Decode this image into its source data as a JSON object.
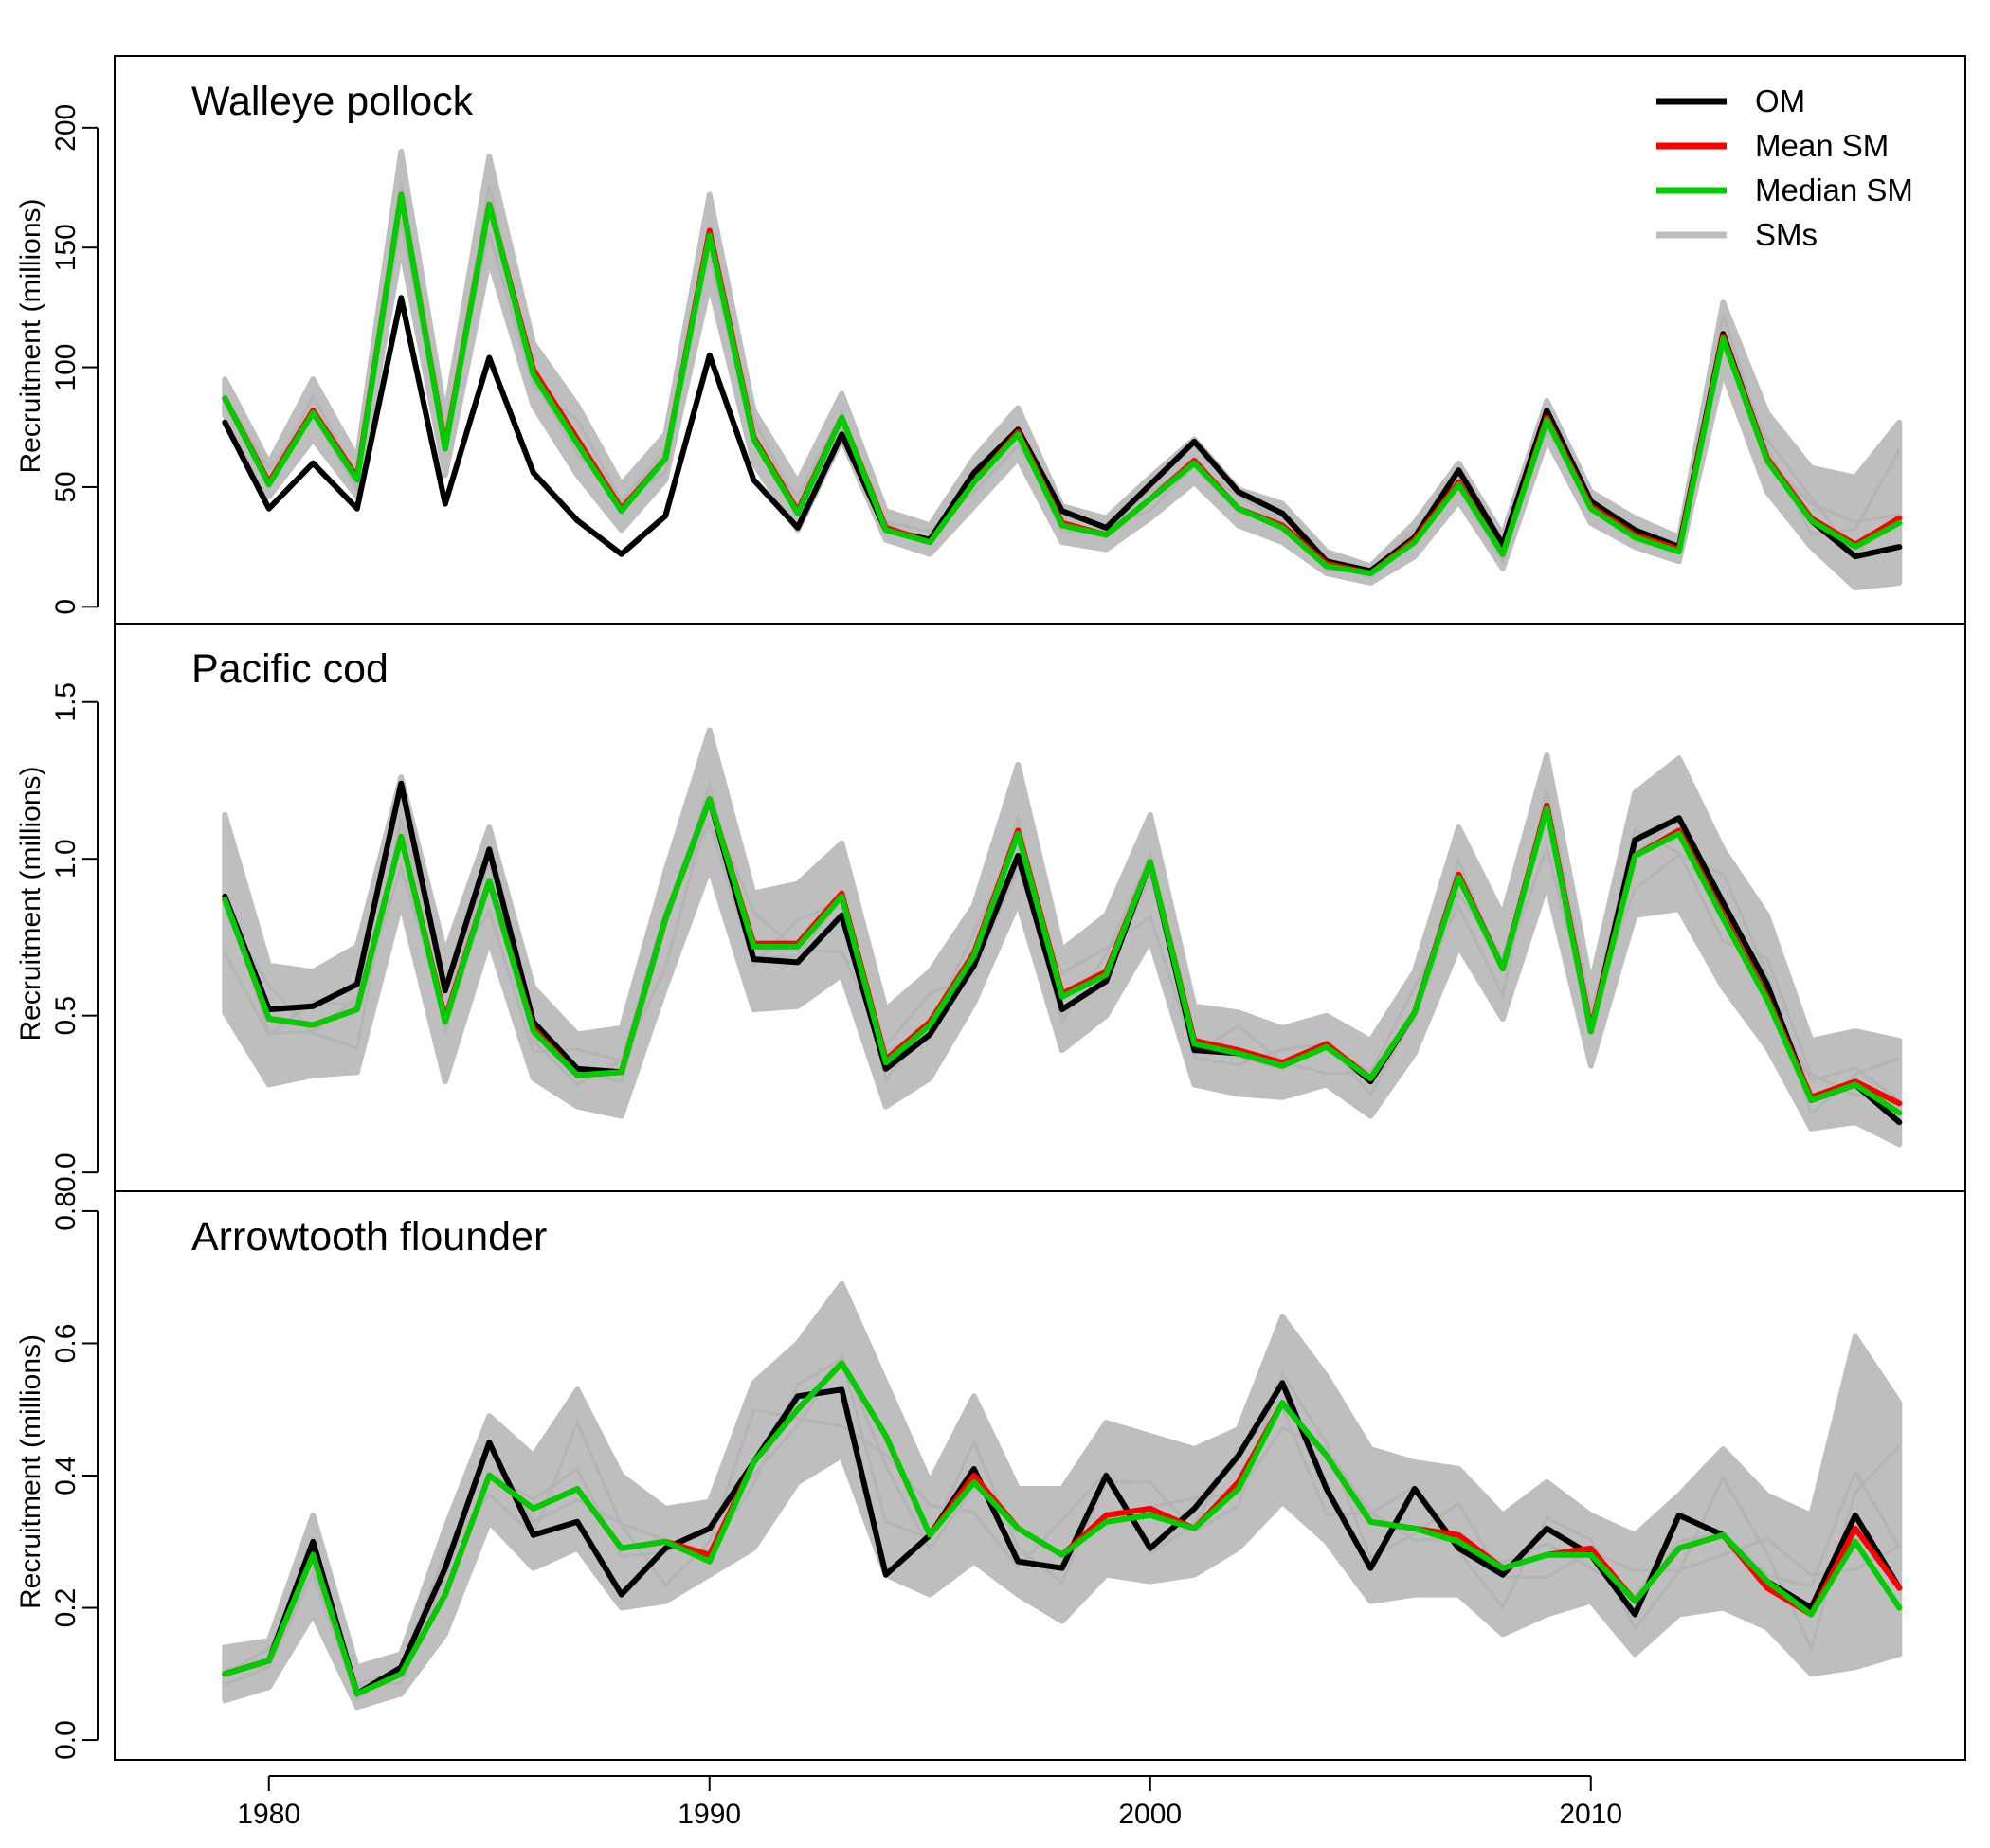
{
  "chart_data": [
    {
      "type": "line",
      "title": "Walleye pollock",
      "ylabel": "Recruitment (millions)",
      "xlim": [
        1976.5,
        2018.5
      ],
      "ylim": [
        -7,
        230
      ],
      "yticks": [
        0,
        50,
        100,
        150,
        200
      ],
      "x": [
        1979,
        1980,
        1981,
        1982,
        1983,
        1984,
        1985,
        1986,
        1987,
        1988,
        1989,
        1990,
        1991,
        1992,
        1993,
        1994,
        1995,
        1996,
        1997,
        1998,
        1999,
        2000,
        2001,
        2002,
        2003,
        2004,
        2005,
        2006,
        2007,
        2008,
        2009,
        2010,
        2011,
        2012,
        2013,
        2014,
        2015,
        2016,
        2017
      ],
      "series": [
        {
          "name": "OM",
          "color": "#000000",
          "values": [
            77,
            41,
            60,
            41,
            129,
            43,
            104,
            56,
            36,
            22,
            38,
            105,
            53,
            33,
            72,
            32,
            28,
            56,
            74,
            40,
            33,
            51,
            69,
            48,
            39,
            19,
            15,
            29,
            57,
            26,
            82,
            44,
            32,
            25,
            114,
            62,
            36,
            21,
            25
          ]
        },
        {
          "name": "Mean SM",
          "color": "#ff0000",
          "values": [
            87,
            52,
            82,
            54,
            172,
            67,
            168,
            99,
            70,
            41,
            62,
            157,
            71,
            40,
            79,
            33,
            27,
            52,
            73,
            35,
            30,
            45,
            61,
            41,
            34,
            18,
            14,
            28,
            52,
            22,
            79,
            42,
            30,
            24,
            113,
            62,
            37,
            26,
            37
          ]
        },
        {
          "name": "Median SM",
          "color": "#00cc00",
          "values": [
            87,
            51,
            81,
            53,
            172,
            66,
            168,
            97,
            68,
            40,
            62,
            155,
            70,
            39,
            79,
            32,
            27,
            52,
            72,
            34,
            30,
            45,
            60,
            41,
            33,
            17,
            14,
            27,
            51,
            22,
            78,
            41,
            29,
            23,
            112,
            61,
            36,
            25,
            35
          ]
        },
        {
          "name": "SMs",
          "color": "#bebebe",
          "lower": [
            80,
            46,
            70,
            46,
            150,
            55,
            145,
            84,
            55,
            32,
            53,
            135,
            60,
            32,
            70,
            28,
            22,
            42,
            62,
            27,
            24,
            37,
            52,
            34,
            27,
            14,
            10,
            21,
            44,
            16,
            70,
            35,
            25,
            19,
            98,
            48,
            25,
            8,
            10
          ],
          "upper": [
            95,
            60,
            95,
            62,
            190,
            80,
            188,
            110,
            84,
            51,
            72,
            172,
            82,
            52,
            89,
            40,
            34,
            62,
            83,
            42,
            37,
            54,
            70,
            49,
            43,
            23,
            17,
            35,
            60,
            30,
            86,
            48,
            37,
            29,
            127,
            81,
            58,
            54,
            77
          ]
        }
      ]
    },
    {
      "type": "line",
      "title": "Pacific cod",
      "ylabel": "Recruitment (millions)",
      "xlim": [
        1976.5,
        2018.5
      ],
      "ylim": [
        -0.06,
        1.75
      ],
      "yticks": [
        0.0,
        0.5,
        1.0,
        1.5
      ],
      "x": [
        1979,
        1980,
        1981,
        1982,
        1983,
        1984,
        1985,
        1986,
        1987,
        1988,
        1989,
        1990,
        1991,
        1992,
        1993,
        1994,
        1995,
        1996,
        1997,
        1998,
        1999,
        2000,
        2001,
        2002,
        2003,
        2004,
        2005,
        2006,
        2007,
        2008,
        2009,
        2010,
        2011,
        2012,
        2013,
        2014,
        2015,
        2016,
        2017
      ],
      "series": [
        {
          "name": "OM",
          "color": "#000000",
          "values": [
            0.88,
            0.52,
            0.53,
            0.6,
            1.24,
            0.58,
            1.03,
            0.48,
            0.33,
            0.32,
            0.81,
            1.19,
            0.68,
            0.67,
            0.82,
            0.33,
            0.44,
            0.66,
            1.01,
            0.52,
            0.61,
            0.99,
            0.39,
            0.38,
            0.34,
            0.41,
            0.29,
            0.51,
            0.95,
            0.65,
            1.17,
            0.45,
            1.06,
            1.13,
            0.86,
            0.6,
            0.23,
            0.28,
            0.16
          ]
        },
        {
          "name": "Mean SM",
          "color": "#ff0000",
          "values": [
            0.87,
            0.49,
            0.47,
            0.52,
            1.07,
            0.49,
            0.93,
            0.46,
            0.31,
            0.32,
            0.81,
            1.19,
            0.73,
            0.73,
            0.89,
            0.36,
            0.48,
            0.7,
            1.09,
            0.57,
            0.64,
            0.99,
            0.42,
            0.39,
            0.35,
            0.41,
            0.3,
            0.51,
            0.95,
            0.65,
            1.17,
            0.46,
            1.01,
            1.09,
            0.82,
            0.56,
            0.24,
            0.29,
            0.22
          ]
        },
        {
          "name": "Median SM",
          "color": "#00cc00",
          "values": [
            0.87,
            0.49,
            0.47,
            0.52,
            1.07,
            0.48,
            0.93,
            0.45,
            0.31,
            0.32,
            0.81,
            1.19,
            0.72,
            0.72,
            0.88,
            0.35,
            0.47,
            0.69,
            1.08,
            0.56,
            0.63,
            0.99,
            0.41,
            0.38,
            0.34,
            0.4,
            0.3,
            0.51,
            0.94,
            0.65,
            1.16,
            0.45,
            1.01,
            1.08,
            0.81,
            0.55,
            0.23,
            0.28,
            0.19
          ]
        },
        {
          "name": "SMs",
          "color": "#bebebe",
          "lower": [
            0.51,
            0.28,
            0.31,
            0.32,
            0.86,
            0.29,
            0.74,
            0.3,
            0.21,
            0.18,
            0.59,
            0.97,
            0.52,
            0.53,
            0.63,
            0.21,
            0.3,
            0.54,
            0.86,
            0.39,
            0.5,
            0.74,
            0.28,
            0.25,
            0.24,
            0.28,
            0.18,
            0.38,
            0.72,
            0.49,
            0.92,
            0.34,
            0.82,
            0.84,
            0.59,
            0.4,
            0.14,
            0.16,
            0.09
          ]
        },
        {
          "name": "SMs",
          "color": "#bebebe",
          "upper": [
            1.14,
            0.66,
            0.64,
            0.72,
            1.26,
            0.7,
            1.1,
            0.59,
            0.44,
            0.46,
            0.96,
            1.41,
            0.89,
            0.92,
            1.05,
            0.52,
            0.64,
            0.85,
            1.3,
            0.71,
            0.82,
            1.14,
            0.53,
            0.51,
            0.46,
            0.5,
            0.42,
            0.64,
            1.1,
            0.82,
            1.33,
            0.6,
            1.21,
            1.32,
            1.03,
            0.82,
            0.42,
            0.45,
            0.42
          ]
        }
      ]
    },
    {
      "type": "line",
      "title": "Arrowtooth flounder",
      "ylabel": "Recruitment (millions)",
      "xlim": [
        1976.5,
        2018.5
      ],
      "ylim": [
        -0.03,
        0.83
      ],
      "yticks": [
        0.0,
        0.2,
        0.4,
        0.6,
        0.8
      ],
      "x": [
        1979,
        1980,
        1981,
        1982,
        1983,
        1984,
        1985,
        1986,
        1987,
        1988,
        1989,
        1990,
        1991,
        1992,
        1993,
        1994,
        1995,
        1996,
        1997,
        1998,
        1999,
        2000,
        2001,
        2002,
        2003,
        2004,
        2005,
        2006,
        2007,
        2008,
        2009,
        2010,
        2011,
        2012,
        2013,
        2014,
        2015,
        2016,
        2017
      ],
      "series": [
        {
          "name": "OM",
          "color": "#000000",
          "values": [
            0.1,
            0.12,
            0.3,
            0.07,
            0.11,
            0.26,
            0.45,
            0.31,
            0.33,
            0.22,
            0.29,
            0.32,
            0.42,
            0.52,
            0.53,
            0.25,
            0.31,
            0.41,
            0.27,
            0.26,
            0.4,
            0.29,
            0.35,
            0.43,
            0.54,
            0.38,
            0.26,
            0.38,
            0.29,
            0.25,
            0.32,
            0.28,
            0.19,
            0.34,
            0.31,
            0.24,
            0.2,
            0.34,
            0.23
          ]
        },
        {
          "name": "Mean SM",
          "color": "#ff0000",
          "values": [
            0.1,
            0.12,
            0.28,
            0.07,
            0.1,
            0.22,
            0.4,
            0.35,
            0.38,
            0.29,
            0.3,
            0.28,
            0.42,
            0.5,
            0.57,
            0.46,
            0.31,
            0.4,
            0.32,
            0.28,
            0.34,
            0.35,
            0.32,
            0.39,
            0.51,
            0.43,
            0.33,
            0.32,
            0.31,
            0.26,
            0.28,
            0.29,
            0.21,
            0.29,
            0.31,
            0.23,
            0.19,
            0.32,
            0.23
          ]
        },
        {
          "name": "Median SM",
          "color": "#00cc00",
          "values": [
            0.1,
            0.12,
            0.28,
            0.07,
            0.1,
            0.22,
            0.4,
            0.35,
            0.38,
            0.29,
            0.3,
            0.27,
            0.42,
            0.5,
            0.57,
            0.46,
            0.31,
            0.39,
            0.32,
            0.28,
            0.33,
            0.34,
            0.32,
            0.38,
            0.51,
            0.43,
            0.33,
            0.32,
            0.3,
            0.26,
            0.28,
            0.28,
            0.21,
            0.29,
            0.31,
            0.24,
            0.19,
            0.3,
            0.2
          ]
        },
        {
          "name": "SMs",
          "color": "#bebebe",
          "lower": [
            0.06,
            0.08,
            0.19,
            0.05,
            0.07,
            0.16,
            0.33,
            0.26,
            0.29,
            0.2,
            0.21,
            0.25,
            0.29,
            0.39,
            0.43,
            0.25,
            0.22,
            0.27,
            0.22,
            0.18,
            0.25,
            0.24,
            0.25,
            0.29,
            0.36,
            0.3,
            0.21,
            0.22,
            0.22,
            0.16,
            0.19,
            0.21,
            0.13,
            0.19,
            0.2,
            0.17,
            0.1,
            0.11,
            0.13
          ]
        },
        {
          "name": "SMs",
          "color": "#bebebe",
          "upper": [
            0.14,
            0.15,
            0.34,
            0.11,
            0.13,
            0.32,
            0.49,
            0.43,
            0.53,
            0.4,
            0.35,
            0.36,
            0.54,
            0.6,
            0.69,
            0.54,
            0.39,
            0.52,
            0.38,
            0.38,
            0.48,
            0.46,
            0.44,
            0.47,
            0.64,
            0.55,
            0.44,
            0.42,
            0.41,
            0.34,
            0.39,
            0.34,
            0.31,
            0.37,
            0.44,
            0.37,
            0.34,
            0.61,
            0.51
          ]
        }
      ]
    }
  ],
  "legend": {
    "position": "top-right",
    "items": [
      {
        "label": "OM",
        "color": "#000000"
      },
      {
        "label": "Mean SM",
        "color": "#ff0000"
      },
      {
        "label": "Median SM",
        "color": "#00cc00"
      },
      {
        "label": "SMs",
        "color": "#bebebe"
      }
    ]
  },
  "x_ticks": [
    1980,
    1990,
    2000,
    2010
  ]
}
